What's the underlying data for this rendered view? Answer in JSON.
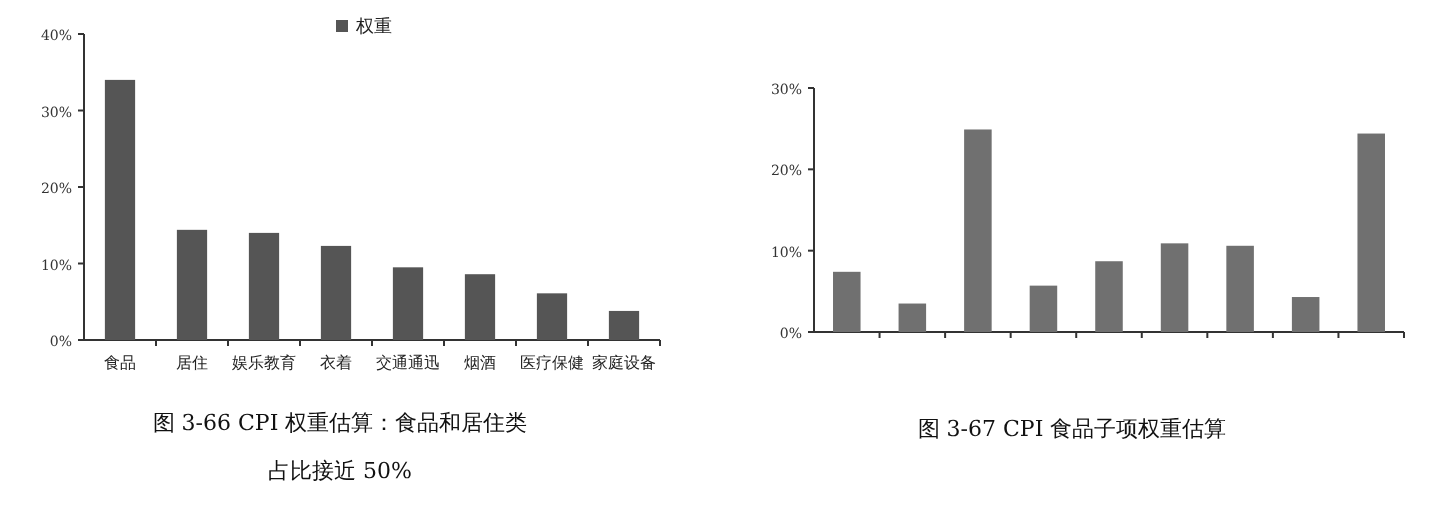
{
  "chart_data": [
    {
      "type": "bar",
      "categories": [
        "食品",
        "居住",
        "娱乐教育",
        "衣着",
        "交通通迅",
        "烟酒",
        "医疗保健",
        "家庭设备"
      ],
      "series": [
        {
          "name": "权重",
          "color": "#555555",
          "values": [
            34.0,
            14.4,
            14.0,
            12.3,
            9.5,
            8.6,
            6.1,
            3.8
          ]
        }
      ],
      "ylim": [
        0,
        40
      ],
      "yticks": [
        {
          "value": 0,
          "label": "0%"
        },
        {
          "value": 10,
          "label": "10%"
        },
        {
          "value": 20,
          "label": "20%"
        },
        {
          "value": 30,
          "label": "30%"
        },
        {
          "value": 40,
          "label": "40%"
        }
      ],
      "legend": "top",
      "grid": false,
      "annotations": [
        "图 3-66  CPI 权重估算：食品和居住类",
        "占比接近 50%"
      ]
    },
    {
      "type": "bar",
      "categories": [
        null,
        null,
        null,
        null,
        null,
        null,
        null,
        null,
        null
      ],
      "series": [
        {
          "color": "#707070",
          "values": [
            7.4,
            3.5,
            24.9,
            5.7,
            8.7,
            10.9,
            10.6,
            4.3,
            24.4
          ]
        }
      ],
      "ylim": [
        0,
        30
      ],
      "yticks": [
        {
          "value": 0,
          "label": "0%"
        },
        {
          "value": 10,
          "label": "10%"
        },
        {
          "value": 20,
          "label": "20%"
        },
        {
          "value": 30,
          "label": "30%"
        }
      ],
      "grid": false,
      "annotations": [
        "图 3-67  CPI 食品子项权重估算"
      ]
    }
  ]
}
